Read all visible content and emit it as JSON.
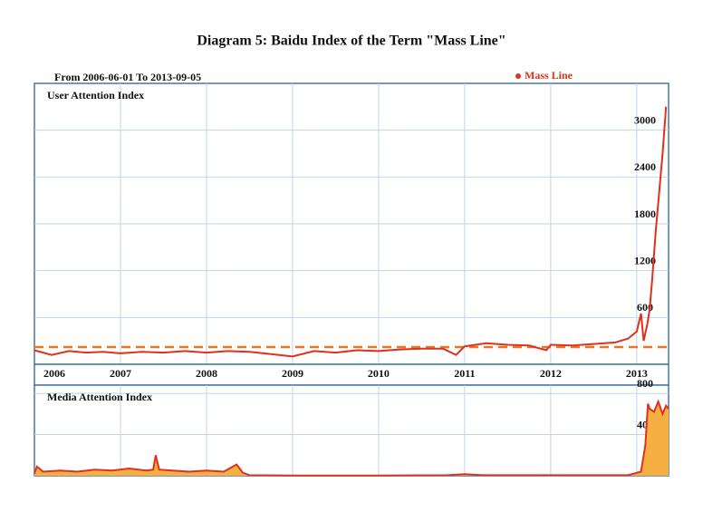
{
  "title": "Diagram 5: Baidu Index of the Term \"Mass Line\"",
  "subtitle": "From 2006-06-01 To 2013-09-05",
  "chart_data": [
    {
      "type": "line",
      "title": "User Attention Index",
      "x": [
        2006.0,
        2006.2,
        2006.4,
        2006.6,
        2006.8,
        2007.0,
        2007.25,
        2007.5,
        2007.75,
        2008.0,
        2008.25,
        2008.5,
        2008.75,
        2009.0,
        2009.25,
        2009.5,
        2009.75,
        2010.0,
        2010.25,
        2010.5,
        2010.75,
        2010.9,
        2011.0,
        2011.25,
        2011.5,
        2011.75,
        2011.95,
        2012.0,
        2012.25,
        2012.5,
        2012.75,
        2012.9,
        2013.0,
        2013.05,
        2013.08,
        2013.12,
        2013.15,
        2013.18,
        2013.22,
        2013.26,
        2013.3,
        2013.34
      ],
      "series": [
        {
          "name": "Mass Line",
          "color": "#e0301e",
          "values": [
            180,
            120,
            170,
            150,
            160,
            140,
            160,
            150,
            170,
            150,
            170,
            160,
            130,
            100,
            170,
            150,
            180,
            170,
            190,
            200,
            200,
            120,
            230,
            270,
            250,
            240,
            180,
            250,
            240,
            260,
            280,
            330,
            420,
            650,
            300,
            500,
            700,
            1100,
            1700,
            2200,
            2700,
            3300
          ]
        }
      ],
      "xlim": [
        2006.0,
        2013.37
      ],
      "xticks": [
        2006,
        2007,
        2008,
        2009,
        2010,
        2011,
        2012,
        2013
      ],
      "ylim": [
        0,
        3600
      ],
      "yticks": [
        600,
        1200,
        1800,
        2400,
        3000
      ],
      "reference_line": 220,
      "reference_color": "#e87722",
      "grid": true
    },
    {
      "type": "area",
      "title": "Media Attention Index",
      "x": [
        2006.0,
        2006.03,
        2006.1,
        2006.3,
        2006.5,
        2006.7,
        2006.9,
        2007.1,
        2007.3,
        2007.38,
        2007.41,
        2007.45,
        2007.6,
        2007.8,
        2008.0,
        2008.2,
        2008.35,
        2008.42,
        2008.5,
        2009.0,
        2010.0,
        2010.8,
        2011.0,
        2011.2,
        2012.0,
        2012.9,
        2013.05,
        2013.1,
        2013.13,
        2013.15,
        2013.2,
        2013.25,
        2013.3,
        2013.34,
        2013.37
      ],
      "series": [
        {
          "name": "Mass Line",
          "color": "#e0301e",
          "fill": "#f5b041",
          "values": [
            20,
            90,
            40,
            50,
            40,
            60,
            50,
            70,
            50,
            60,
            200,
            60,
            50,
            40,
            50,
            40,
            110,
            30,
            5,
            3,
            3,
            5,
            15,
            5,
            5,
            5,
            40,
            300,
            700,
            650,
            620,
            720,
            600,
            680,
            650
          ]
        }
      ],
      "xlim": [
        2006.0,
        2013.37
      ],
      "ylim": [
        0,
        880
      ],
      "yticks": [
        400,
        800
      ],
      "grid": true
    }
  ]
}
